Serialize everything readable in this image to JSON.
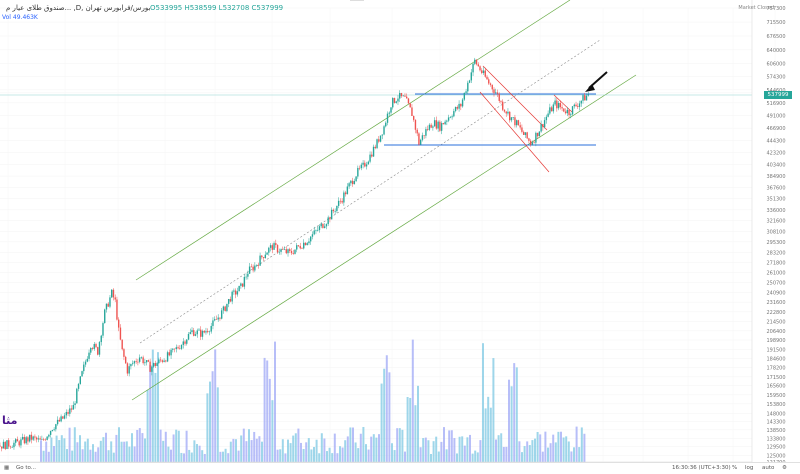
{
  "header": {
    "title": "صندوق طلای عیار م... ,D, بورس/فرابورس تهران",
    "ohlc": "O533995  H538599  L532708  C537999",
    "indicator": "49.463K",
    "indicator_label": "Vol",
    "mini_label": "",
    "market_status": "Market Closed"
  },
  "last_price_tag": "537999",
  "bottom_bar": {
    "goto": "Go to...",
    "clock": "16:30:36 (UTC+3:30)",
    "percent": "%",
    "log": "log",
    "auto": "auto"
  },
  "logo_text": "مثا",
  "logo_sub": "",
  "colors": {
    "up": "#26a69a",
    "down": "#ef5350",
    "channel": "#66aa44",
    "level": "#2a6fdb",
    "red_channel": "#e53935",
    "vol_a": "#9fa8f5",
    "vol_b": "#7ec8e3"
  },
  "chart_data": {
    "type": "candlestick",
    "title": "",
    "x_ticks": [
      "Nov",
      "2026",
      "Mar",
      "May",
      "Jul",
      "Sep",
      "Nov",
      "2025",
      "Mar",
      "May",
      "Jul",
      "Sep",
      "Oct",
      "Nov",
      "Dec",
      "201"
    ],
    "y_ticks": [
      121700,
      125000,
      129500,
      133800,
      138500,
      143300,
      148000,
      153800,
      159500,
      165600,
      171500,
      178200,
      184600,
      191500,
      198900,
      206400,
      214500,
      222800,
      231600,
      240900,
      250700,
      261000,
      271800,
      283200,
      295300,
      308100,
      321600,
      336000,
      351300,
      367600,
      384900,
      403400,
      423200,
      444300,
      466900,
      491000,
      516900,
      537999,
      544600,
      574300,
      606000,
      640000,
      676500,
      715500,
      757300
    ],
    "y_tick_labels": [
      "121700",
      "125000",
      "129500",
      "133800",
      "138500",
      "143300",
      "148000",
      "153800",
      "159500",
      "165600",
      "171500",
      "178200",
      "184600",
      "191500",
      "198900",
      "206400",
      "214500",
      "222800",
      "231600",
      "240900",
      "250700",
      "261000",
      "271800",
      "283200",
      "295300",
      "308100",
      "321600",
      "336000",
      "351300",
      "367600",
      "384900",
      "403400",
      "423200",
      "444300",
      "466900",
      "491000",
      "516900",
      "",
      "544600",
      "574300",
      "606000",
      "640000",
      "676500",
      "715500",
      "757300"
    ],
    "last_close": 537999,
    "price_path": [
      [
        0,
        130000
      ],
      [
        10,
        131500
      ],
      [
        18,
        134000
      ],
      [
        24,
        132000
      ],
      [
        30,
        140000
      ],
      [
        36,
        145000
      ],
      [
        42,
        152000
      ],
      [
        48,
        178000
      ],
      [
        52,
        196000
      ],
      [
        56,
        190000
      ],
      [
        60,
        222000
      ],
      [
        64,
        240000
      ],
      [
        66,
        232000
      ],
      [
        68,
        206000
      ],
      [
        70,
        190000
      ],
      [
        73,
        176000
      ],
      [
        76,
        181000
      ],
      [
        80,
        186000
      ],
      [
        86,
        178000
      ],
      [
        92,
        183000
      ],
      [
        98,
        188000
      ],
      [
        104,
        196000
      ],
      [
        110,
        206000
      ],
      [
        116,
        204000
      ],
      [
        122,
        212000
      ],
      [
        128,
        224000
      ],
      [
        132,
        236000
      ],
      [
        138,
        246000
      ],
      [
        142,
        262000
      ],
      [
        146,
        268000
      ],
      [
        152,
        283000
      ],
      [
        156,
        290000
      ],
      [
        160,
        286000
      ],
      [
        166,
        282000
      ],
      [
        170,
        288000
      ],
      [
        176,
        297000
      ],
      [
        182,
        310000
      ],
      [
        188,
        324000
      ],
      [
        192,
        338000
      ],
      [
        196,
        352000
      ],
      [
        200,
        370000
      ],
      [
        204,
        388000
      ],
      [
        208,
        400000
      ],
      [
        212,
        418000
      ],
      [
        216,
        440000
      ],
      [
        220,
        470000
      ],
      [
        224,
        515000
      ],
      [
        228,
        530000
      ],
      [
        232,
        525000
      ],
      [
        236,
        495000
      ],
      [
        240,
        440000
      ],
      [
        244,
        462000
      ],
      [
        248,
        478000
      ],
      [
        252,
        470000
      ],
      [
        256,
        485000
      ],
      [
        260,
        500000
      ],
      [
        264,
        512000
      ],
      [
        268,
        560000
      ],
      [
        272,
        612000
      ],
      [
        276,
        585000
      ],
      [
        280,
        560000
      ],
      [
        284,
        540000
      ],
      [
        288,
        510000
      ],
      [
        292,
        490000
      ],
      [
        296,
        475000
      ],
      [
        300,
        455000
      ],
      [
        304,
        440000
      ],
      [
        306,
        448000
      ],
      [
        310,
        470000
      ],
      [
        314,
        495000
      ],
      [
        318,
        515000
      ],
      [
        322,
        505000
      ],
      [
        326,
        498000
      ],
      [
        330,
        512000
      ],
      [
        334,
        525000
      ],
      [
        338,
        537999
      ]
    ],
    "levels": [
      {
        "name": "resistance",
        "value": 544600
      },
      {
        "name": "support",
        "value": 428000
      }
    ],
    "volume_max": 1.0
  }
}
